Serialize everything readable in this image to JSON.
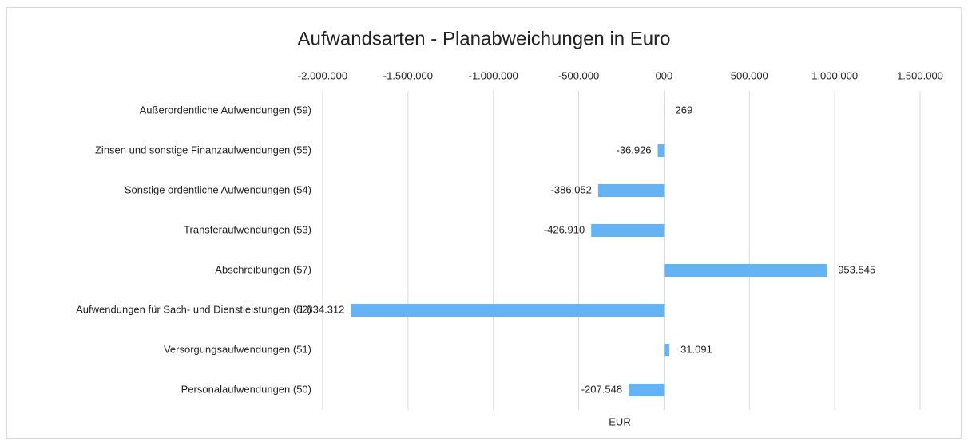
{
  "chart_data": {
    "type": "barh",
    "title": "Aufwandsarten - Planabweichungen in Euro",
    "xlabel": "EUR",
    "categories": [
      "Außerordentliche Aufwendungen (59)",
      "Zinsen und sonstige Finanzaufwendungen (55)",
      "Sonstige ordentliche Aufwendungen (54)",
      "Transferaufwendungen (53)",
      "Abschreibungen (57)",
      "Aufwendungen für Sach- und Dienstleistungen (52)",
      "Versorgungsaufwendungen (51)",
      "Personalaufwendungen (50)"
    ],
    "values": [
      269,
      -36926,
      -386052,
      -426910,
      953545,
      -1834312,
      31091,
      -207548
    ],
    "value_labels": [
      "269",
      "-36.926",
      "-386.052",
      "-426.910",
      "953.545",
      "-1.834.312",
      "31.091",
      "-207.548"
    ],
    "color": "#63b3f5",
    "xlim": [
      -2000000,
      1500000
    ],
    "xticks": [
      {
        "value": -2000000,
        "label": "-2.000.000"
      },
      {
        "value": -1500000,
        "label": "-1.500.000"
      },
      {
        "value": -1000000,
        "label": "-1.000.000"
      },
      {
        "value": -500000,
        "label": "-500.000"
      },
      {
        "value": 0,
        "label": "000"
      },
      {
        "value": 500000,
        "label": "500.000"
      },
      {
        "value": 1000000,
        "label": "1.000.000"
      },
      {
        "value": 1500000,
        "label": "1.500.000"
      }
    ],
    "grid": true
  }
}
